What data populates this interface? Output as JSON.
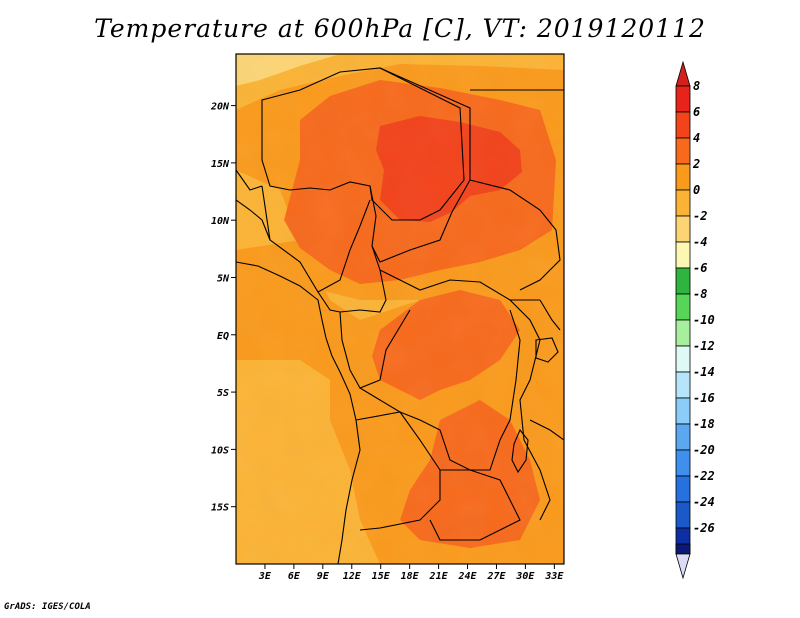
{
  "title": "Temperature at 600hPa [C], VT: 2019120112",
  "credit": "GrADS: IGES/COLA",
  "map": {
    "lat_labels": [
      {
        "lat": 20,
        "label": "20N"
      },
      {
        "lat": 15,
        "label": "15N"
      },
      {
        "lat": 10,
        "label": "10N"
      },
      {
        "lat": 5,
        "label": "5N"
      },
      {
        "lat": 0,
        "label": "EQ"
      },
      {
        "lat": -5,
        "label": "5S"
      },
      {
        "lat": -10,
        "label": "10S"
      },
      {
        "lat": -15,
        "label": "15S"
      }
    ],
    "lon_labels": [
      {
        "lon": 3,
        "label": "3E"
      },
      {
        "lon": 6,
        "label": "6E"
      },
      {
        "lon": 9,
        "label": "9E"
      },
      {
        "lon": 12,
        "label": "12E"
      },
      {
        "lon": 15,
        "label": "15E"
      },
      {
        "lon": 18,
        "label": "18E"
      },
      {
        "lon": 21,
        "label": "21E"
      },
      {
        "lon": 24,
        "label": "24E"
      },
      {
        "lon": 27,
        "label": "27E"
      },
      {
        "lon": 30,
        "label": "30E"
      },
      {
        "lon": 33,
        "label": "33E"
      }
    ],
    "extent": {
      "lon_min": 0,
      "lon_max": 34,
      "lat_min": -20,
      "lat_max": 24.5
    }
  },
  "colorbar": {
    "bins": [
      {
        "label": "8",
        "color": "#e8231c"
      },
      {
        "label": "6",
        "color": "#f2431b"
      },
      {
        "label": "4",
        "color": "#f76a1c"
      },
      {
        "label": "2",
        "color": "#fa9a1c"
      },
      {
        "label": "0",
        "color": "#fbb335"
      },
      {
        "label": "-2",
        "color": "#fbd474"
      },
      {
        "label": "-4",
        "color": "#fdf7b4"
      },
      {
        "label": "-6",
        "color": "#2fb53f"
      },
      {
        "label": "-8",
        "color": "#56d558"
      },
      {
        "label": "-10",
        "color": "#a6ef9c"
      },
      {
        "label": "-12",
        "color": "#def9f6"
      },
      {
        "label": "-14",
        "color": "#b5e4fb"
      },
      {
        "label": "-16",
        "color": "#8bcdf8"
      },
      {
        "label": "-18",
        "color": "#5ba8f1"
      },
      {
        "label": "-20",
        "color": "#3f90ec"
      },
      {
        "label": "-22",
        "color": "#2770e0"
      },
      {
        "label": "-24",
        "color": "#1c59c8"
      },
      {
        "label": "-26",
        "color": "#0c2fa5"
      }
    ],
    "top_arrow_color": "#d3201a",
    "bottom_band_color": "#0b1b75",
    "bottom_arrow_color": "#dcdcf7"
  }
}
